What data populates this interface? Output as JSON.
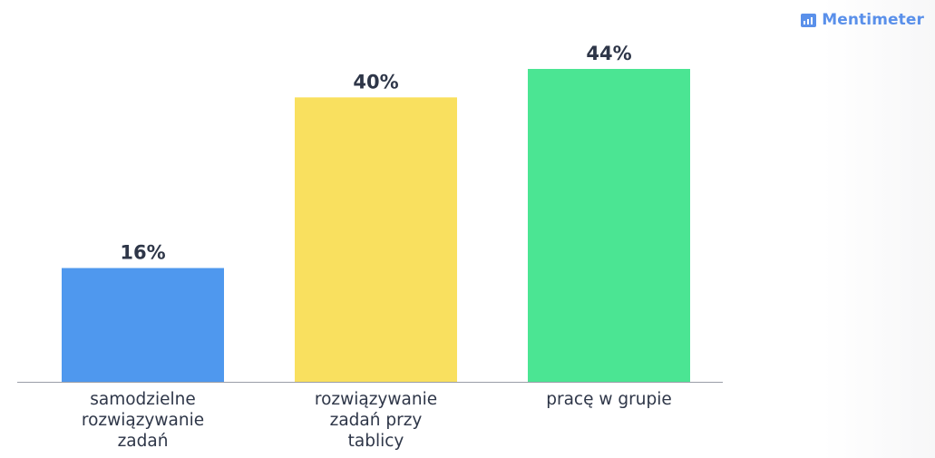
{
  "brand": {
    "name": "Mentimeter",
    "color": "#5a90ea"
  },
  "chart_data": {
    "type": "bar",
    "categories": [
      [
        "samodzielne",
        "rozwiązywanie",
        "zadań"
      ],
      [
        "rozwiązywanie",
        "zadań przy",
        "tablicy"
      ],
      [
        "pracę w grupie"
      ]
    ],
    "values": [
      16,
      40,
      44
    ],
    "value_labels": [
      "16%",
      "40%",
      "44%"
    ],
    "colors": [
      "#4f98ee",
      "#f9e05f",
      "#4be593"
    ],
    "ylim": [
      0,
      44
    ],
    "grid": false,
    "legend": "none"
  }
}
